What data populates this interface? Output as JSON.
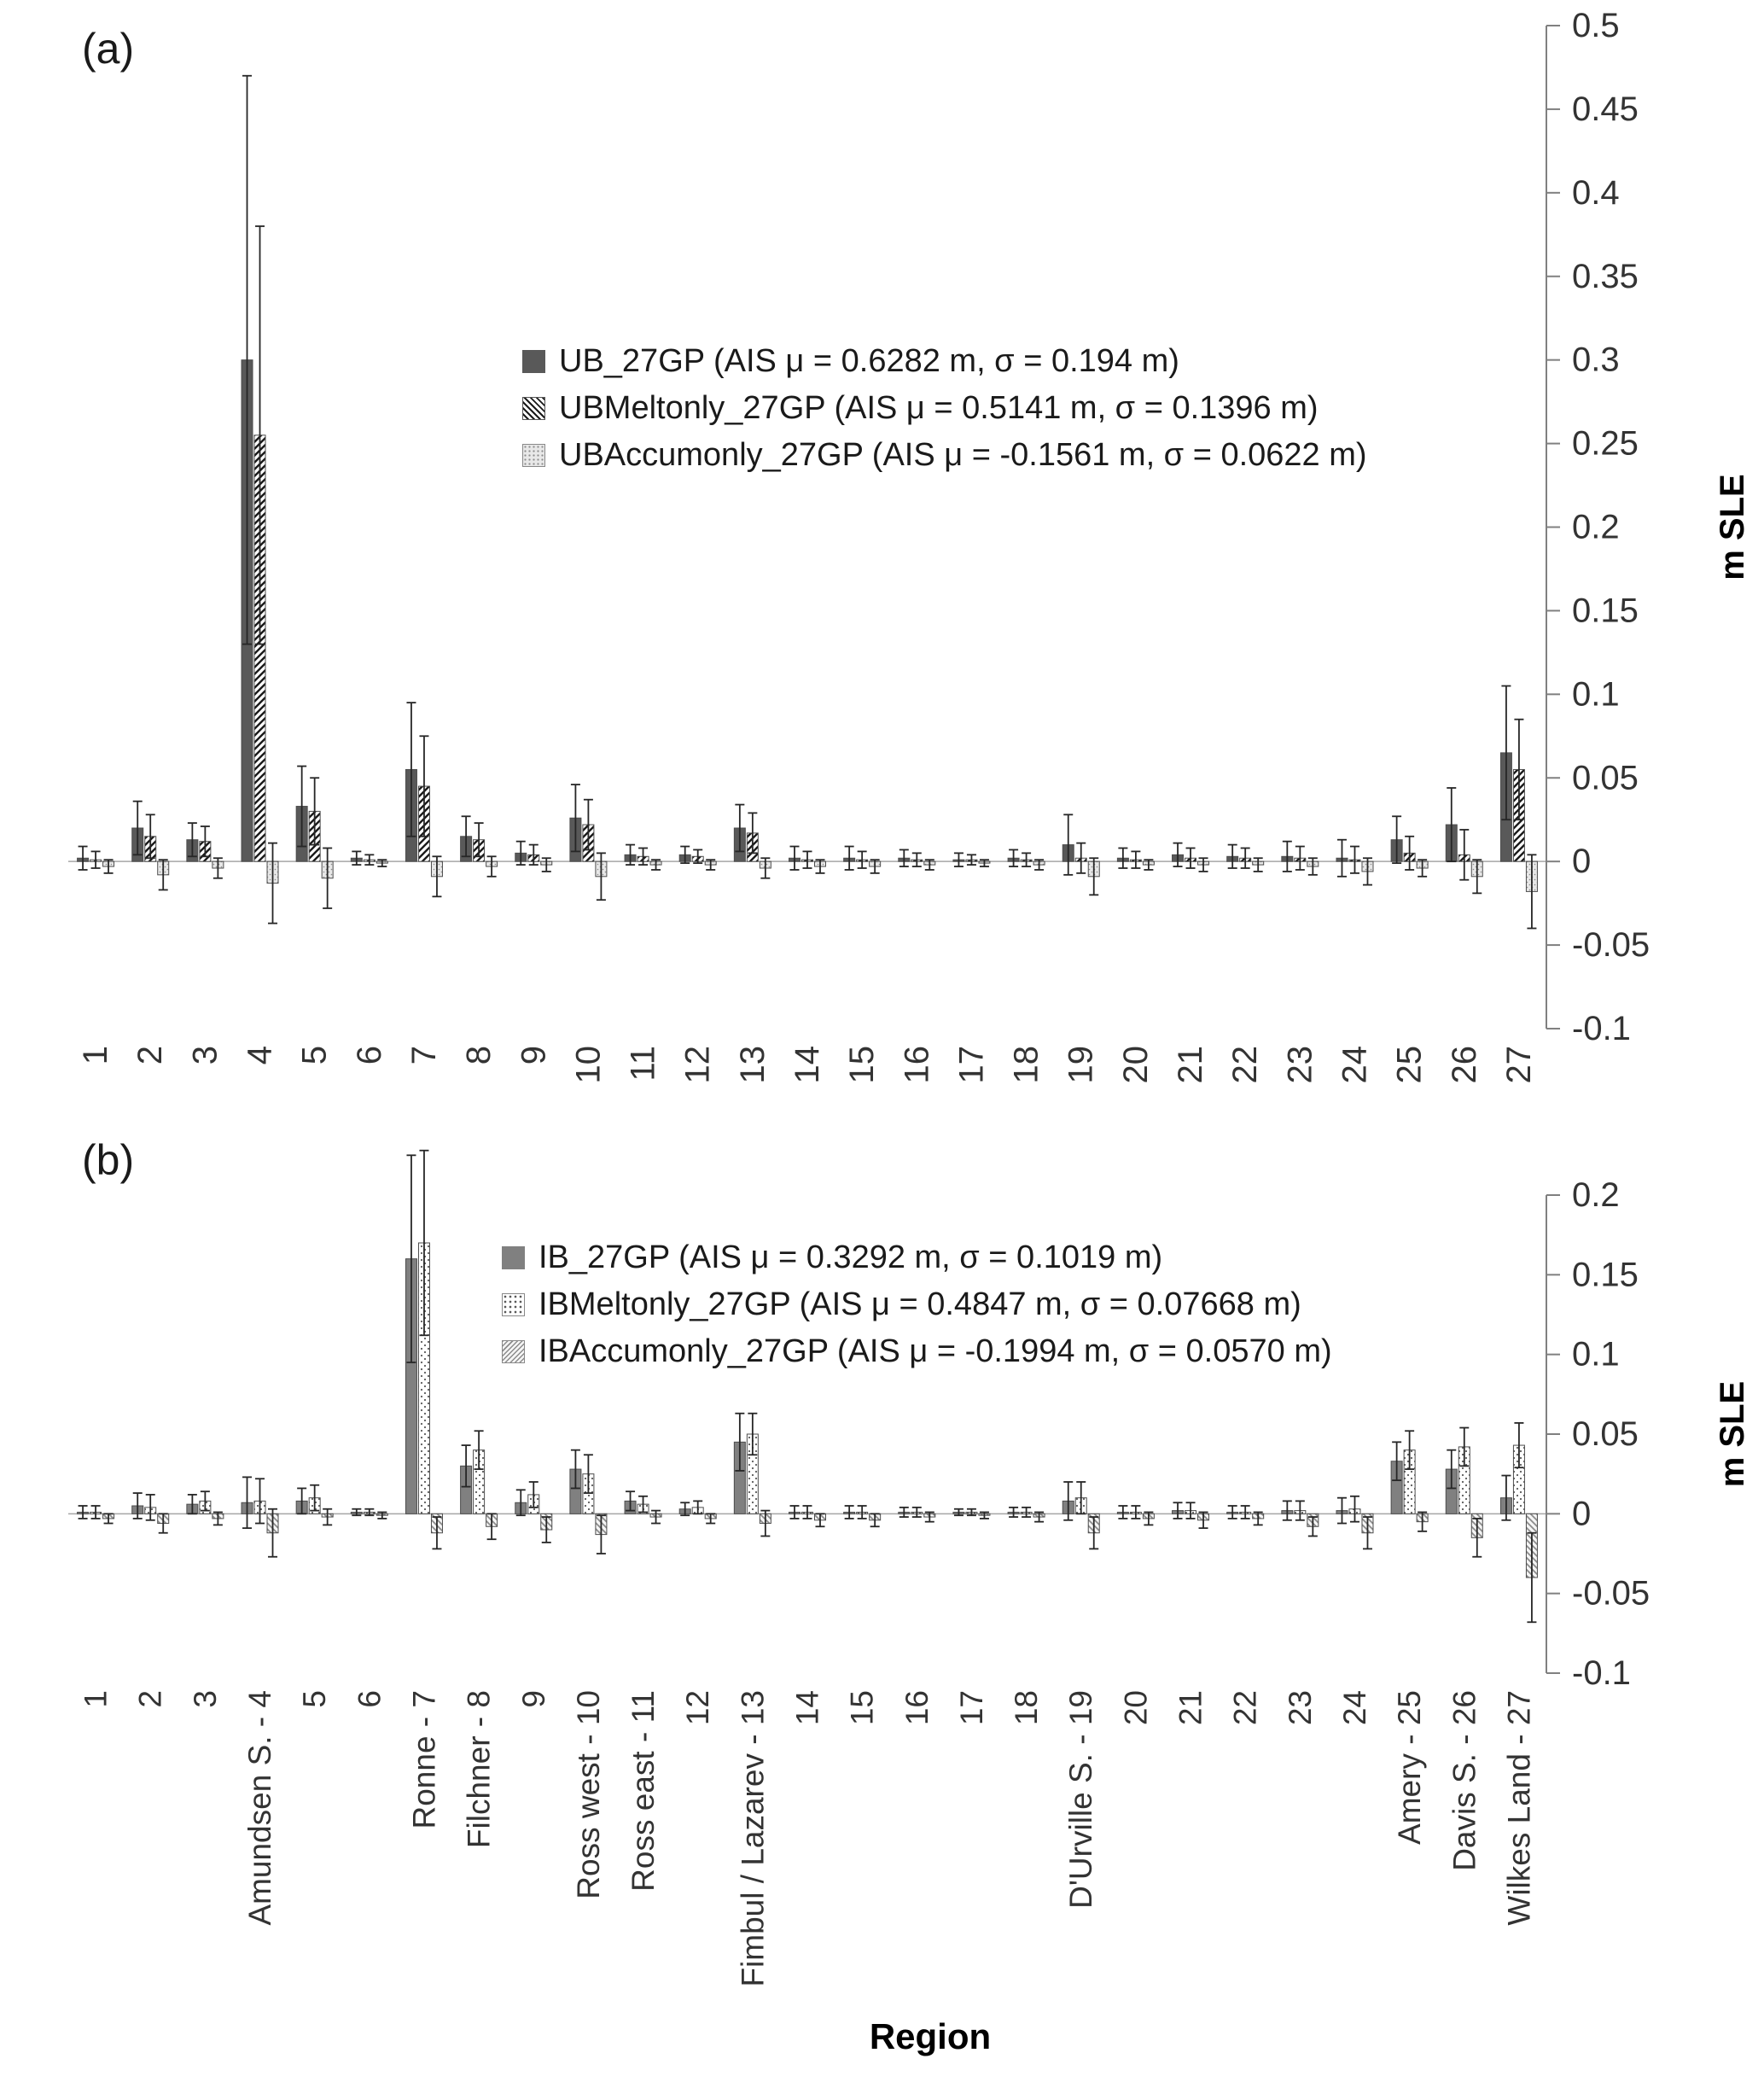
{
  "figure": {
    "x_axis_title": "Region"
  },
  "chart_data": [
    {
      "type": "bar",
      "panel": "(a)",
      "ylabel": "m SLE",
      "ylim": [
        -0.1,
        0.5
      ],
      "yticks": [
        "0.5",
        "0.45",
        "0.4",
        "0.35",
        "0.3",
        "0.25",
        "0.2",
        "0.15",
        "0.1",
        "0.05",
        "0",
        "-0.05",
        "-0.1"
      ],
      "legend_position": "inside-top-center",
      "grid": false,
      "categories": [
        "1",
        "2",
        "3",
        "4",
        "5",
        "6",
        "7",
        "8",
        "9",
        "10",
        "11",
        "12",
        "13",
        "14",
        "15",
        "16",
        "17",
        "18",
        "19",
        "20",
        "21",
        "22",
        "23",
        "24",
        "25",
        "26",
        "27"
      ],
      "series": [
        {
          "name": "UB_27GP",
          "legend": "UB_27GP (AIS μ = 0.6282 m, σ = 0.194 m)",
          "pattern": "solid",
          "color": "#595959",
          "values": [
            0.002,
            0.02,
            0.013,
            0.3,
            0.033,
            0.002,
            0.055,
            0.015,
            0.005,
            0.026,
            0.004,
            0.004,
            0.02,
            0.002,
            0.002,
            0.002,
            0.001,
            0.002,
            0.01,
            0.002,
            0.004,
            0.003,
            0.003,
            0.002,
            0.013,
            0.022,
            0.065
          ],
          "errors": [
            0.007,
            0.016,
            0.01,
            0.17,
            0.024,
            0.004,
            0.04,
            0.012,
            0.007,
            0.02,
            0.006,
            0.005,
            0.014,
            0.007,
            0.007,
            0.005,
            0.004,
            0.005,
            0.018,
            0.006,
            0.007,
            0.007,
            0.009,
            0.011,
            0.014,
            0.022,
            0.04
          ]
        },
        {
          "name": "UBMeltonly_27GP",
          "legend": "UBMeltonly_27GP (AIS μ = 0.5141 m, σ = 0.1396 m)",
          "pattern": "hatch-up",
          "color": "#1a1a1a",
          "values": [
            0.001,
            0.015,
            0.012,
            0.255,
            0.03,
            0.001,
            0.045,
            0.013,
            0.004,
            0.022,
            0.003,
            0.003,
            0.017,
            0.001,
            0.001,
            0.001,
            0.001,
            0.001,
            0.002,
            0.001,
            0.002,
            0.002,
            0.002,
            0.001,
            0.005,
            0.004,
            0.055
          ],
          "errors": [
            0.005,
            0.013,
            0.009,
            0.125,
            0.02,
            0.003,
            0.03,
            0.01,
            0.006,
            0.015,
            0.005,
            0.004,
            0.012,
            0.005,
            0.005,
            0.004,
            0.003,
            0.004,
            0.009,
            0.005,
            0.006,
            0.006,
            0.007,
            0.008,
            0.01,
            0.015,
            0.03
          ]
        },
        {
          "name": "UBAccumonly_27GP",
          "legend": "UBAccumonly_27GP (AIS μ = -0.1561 m, σ = 0.0622 m)",
          "pattern": "stipple",
          "color": "#8c8c8c",
          "values": [
            -0.003,
            -0.008,
            -0.004,
            -0.013,
            -0.01,
            -0.001,
            -0.009,
            -0.003,
            -0.002,
            -0.009,
            -0.002,
            -0.002,
            -0.004,
            -0.003,
            -0.003,
            -0.002,
            -0.001,
            -0.002,
            -0.009,
            -0.002,
            -0.002,
            -0.002,
            -0.003,
            -0.006,
            -0.004,
            -0.009,
            -0.018
          ],
          "errors": [
            0.004,
            0.009,
            0.006,
            0.024,
            0.018,
            0.002,
            0.012,
            0.006,
            0.004,
            0.014,
            0.003,
            0.003,
            0.006,
            0.004,
            0.004,
            0.003,
            0.002,
            0.003,
            0.011,
            0.003,
            0.004,
            0.004,
            0.005,
            0.008,
            0.005,
            0.01,
            0.022
          ]
        }
      ]
    },
    {
      "type": "bar",
      "panel": "(b)",
      "ylabel": "m SLE",
      "xlabel": "Region",
      "ylim": [
        -0.1,
        0.2
      ],
      "yticks": [
        "0.2",
        "0.15",
        "0.1",
        "0.05",
        "0",
        "-0.05",
        "-0.1"
      ],
      "legend_position": "inside-top-center",
      "grid": false,
      "categories": [
        "1",
        "2",
        "3",
        "Amundsen S. - 4",
        "5",
        "6",
        "Ronne - 7",
        "Filchner - 8",
        "9",
        "Ross west - 10",
        "Ross east - 11",
        "12",
        "Fimbul / Lazarev - 13",
        "14",
        "15",
        "16",
        "17",
        "18",
        "D'Urville S. - 19",
        "20",
        "21",
        "22",
        "23",
        "24",
        "Amery - 25",
        "Davis S. - 26",
        "Wilkes Land - 27"
      ],
      "series": [
        {
          "name": "IB_27GP",
          "legend": "IB_27GP (AIS μ = 0.3292 m, σ = 0.1019 m)",
          "pattern": "solid",
          "color": "#808080",
          "values": [
            0.001,
            0.005,
            0.006,
            0.007,
            0.008,
            0.001,
            0.16,
            0.03,
            0.007,
            0.028,
            0.008,
            0.003,
            0.045,
            0.001,
            0.001,
            0.001,
            0.001,
            0.001,
            0.008,
            0.001,
            0.002,
            0.001,
            0.002,
            0.002,
            0.033,
            0.028,
            0.01
          ],
          "errors": [
            0.004,
            0.008,
            0.006,
            0.016,
            0.008,
            0.002,
            0.065,
            0.013,
            0.008,
            0.012,
            0.006,
            0.004,
            0.018,
            0.004,
            0.004,
            0.003,
            0.002,
            0.003,
            0.012,
            0.004,
            0.005,
            0.004,
            0.006,
            0.008,
            0.012,
            0.012,
            0.014
          ]
        },
        {
          "name": "IBMeltonly_27GP",
          "legend": "IBMeltonly_27GP  (AIS μ = 0.4847 m, σ = 0.07668 m)",
          "pattern": "dots",
          "color": "#595959",
          "values": [
            0.001,
            0.004,
            0.008,
            0.008,
            0.01,
            0.001,
            0.17,
            0.04,
            0.012,
            0.025,
            0.006,
            0.004,
            0.05,
            0.001,
            0.001,
            0.001,
            0.001,
            0.001,
            0.01,
            0.001,
            0.002,
            0.001,
            0.002,
            0.003,
            0.04,
            0.042,
            0.043
          ],
          "errors": [
            0.004,
            0.008,
            0.006,
            0.014,
            0.008,
            0.002,
            0.058,
            0.012,
            0.008,
            0.012,
            0.005,
            0.004,
            0.013,
            0.004,
            0.004,
            0.003,
            0.002,
            0.003,
            0.01,
            0.004,
            0.005,
            0.004,
            0.006,
            0.008,
            0.012,
            0.012,
            0.014
          ]
        },
        {
          "name": "IBAccumonly_27GP",
          "legend": "IBAccumonly_27GP  (AIS μ = -0.1994 m, σ = 0.0570 m)",
          "pattern": "hatch-down",
          "color": "#8c8c8c",
          "values": [
            -0.003,
            -0.006,
            -0.003,
            -0.012,
            -0.002,
            -0.001,
            -0.012,
            -0.008,
            -0.01,
            -0.013,
            -0.002,
            -0.003,
            -0.006,
            -0.004,
            -0.004,
            -0.002,
            -0.001,
            -0.002,
            -0.012,
            -0.003,
            -0.004,
            -0.003,
            -0.008,
            -0.012,
            -0.005,
            -0.015,
            -0.04
          ],
          "errors": [
            0.003,
            0.006,
            0.004,
            0.015,
            0.005,
            0.002,
            0.01,
            0.008,
            0.008,
            0.012,
            0.004,
            0.003,
            0.008,
            0.004,
            0.004,
            0.003,
            0.002,
            0.003,
            0.01,
            0.004,
            0.005,
            0.004,
            0.006,
            0.01,
            0.006,
            0.012,
            0.028
          ]
        }
      ]
    }
  ]
}
